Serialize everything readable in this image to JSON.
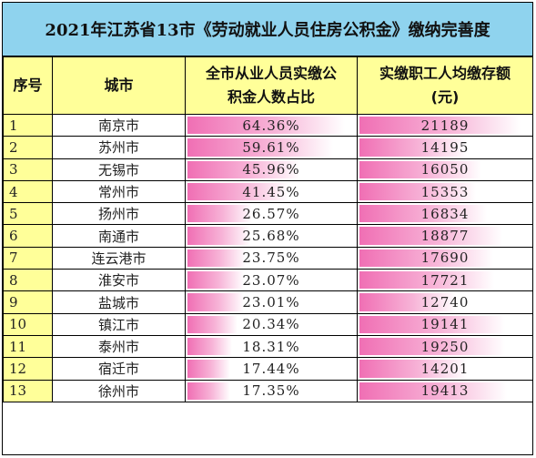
{
  "title": "2021年江苏省13市《劳动就业人员住房公积金》缴纳完善度",
  "headers": {
    "seq": "序号",
    "city": "城市",
    "ratio_line1": "全市从业人员实缴公",
    "ratio_line2": "积金人数占比",
    "deposit_line1": "实缴职工人均缴存额",
    "deposit_line2": "(元)"
  },
  "rows": [
    {
      "seq": "1",
      "city": "南京市",
      "ratio": "64.36%",
      "deposit": "21189"
    },
    {
      "seq": "2",
      "city": "苏州市",
      "ratio": "59.61%",
      "deposit": "14195"
    },
    {
      "seq": "3",
      "city": "无锡市",
      "ratio": "45.96%",
      "deposit": "16050"
    },
    {
      "seq": "4",
      "city": "常州市",
      "ratio": "41.45%",
      "deposit": "15353"
    },
    {
      "seq": "5",
      "city": "扬州市",
      "ratio": "26.57%",
      "deposit": "16834"
    },
    {
      "seq": "6",
      "city": "南通市",
      "ratio": "25.68%",
      "deposit": "18877"
    },
    {
      "seq": "7",
      "city": "连云港市",
      "ratio": "23.75%",
      "deposit": "17690"
    },
    {
      "seq": "8",
      "city": "淮安市",
      "ratio": "23.07%",
      "deposit": "17721"
    },
    {
      "seq": "9",
      "city": "盐城市",
      "ratio": "23.01%",
      "deposit": "12740"
    },
    {
      "seq": "10",
      "city": "镇江市",
      "ratio": "20.34%",
      "deposit": "19141"
    },
    {
      "seq": "11",
      "city": "泰州市",
      "ratio": "18.31%",
      "deposit": "19250"
    },
    {
      "seq": "12",
      "city": "宿迁市",
      "ratio": "17.44%",
      "deposit": "14201"
    },
    {
      "seq": "13",
      "city": "徐州市",
      "ratio": "17.35%",
      "deposit": "19413"
    }
  ],
  "colors": {
    "title_bg": "#8fd3ee",
    "header_bg": "#ffff99",
    "bar_color": "#f06fb4"
  }
}
